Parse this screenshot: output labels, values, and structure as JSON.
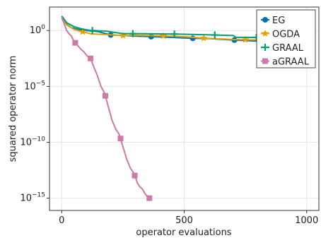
{
  "chart_data": {
    "type": "line",
    "title": "",
    "xlabel": "operator evaluations",
    "ylabel": "squared operator norm",
    "xlim": [
      -50,
      1050
    ],
    "y_scale": "log10",
    "ylim_log10": [
      -16.1,
      2.1
    ],
    "x_ticks": [
      0,
      500,
      1000
    ],
    "x_tick_labels": [
      "0",
      "500",
      "1000"
    ],
    "y_ticks_log10": [
      0,
      -5,
      -10,
      -15
    ],
    "y_tick_labels": [
      {
        "base": "10",
        "exp": "0"
      },
      {
        "base": "10",
        "exp": "−5"
      },
      {
        "base": "10",
        "exp": "−10"
      },
      {
        "base": "10",
        "exp": "−15"
      }
    ],
    "grid": true,
    "legend_position": "top-right",
    "series": [
      {
        "name": "EG",
        "color": "#0072b2",
        "marker": "circle",
        "points": [
          [
            0,
            1.2
          ],
          [
            20,
            0.55
          ],
          [
            40,
            0.25
          ],
          [
            70,
            0.08
          ],
          [
            100,
            0.0
          ],
          [
            150,
            -0.1
          ],
          [
            200,
            -0.4
          ],
          [
            300,
            -0.5
          ],
          [
            365,
            -0.55
          ],
          [
            450,
            -0.62
          ],
          [
            535,
            -0.7
          ],
          [
            600,
            -0.72
          ],
          [
            700,
            -0.85
          ],
          [
            800,
            -0.95
          ],
          [
            900,
            -1.0
          ],
          [
            1000,
            -1.08
          ]
        ],
        "marker_x": [
          200,
          365,
          535,
          705,
          870
        ]
      },
      {
        "name": "OGDA",
        "color": "#e69f00",
        "marker": "star",
        "points": [
          [
            0,
            1.1
          ],
          [
            20,
            0.5
          ],
          [
            50,
            0.1
          ],
          [
            80,
            -0.08
          ],
          [
            120,
            -0.3
          ],
          [
            200,
            -0.38
          ],
          [
            250,
            -0.45
          ],
          [
            300,
            -0.42
          ],
          [
            415,
            -0.48
          ],
          [
            500,
            -0.55
          ],
          [
            580,
            -0.68
          ],
          [
            700,
            -0.8
          ],
          [
            750,
            -0.82
          ],
          [
            800,
            -0.85
          ],
          [
            900,
            -0.92
          ],
          [
            1000,
            -1.0
          ]
        ],
        "marker_x": [
          85,
          250,
          415,
          580,
          750,
          915
        ]
      },
      {
        "name": "GRAAL",
        "color": "#009e73",
        "marker": "plus",
        "points": [
          [
            0,
            1.3
          ],
          [
            20,
            0.7
          ],
          [
            50,
            0.35
          ],
          [
            80,
            0.15
          ],
          [
            120,
            0.0
          ],
          [
            180,
            -0.05
          ],
          [
            250,
            -0.28
          ],
          [
            300,
            -0.28
          ],
          [
            400,
            -0.3
          ],
          [
            500,
            -0.33
          ],
          [
            625,
            -0.4
          ],
          [
            700,
            -0.45
          ],
          [
            710,
            -0.6
          ],
          [
            800,
            -0.62
          ],
          [
            900,
            -0.72
          ],
          [
            1000,
            -0.85
          ]
        ],
        "marker_x": [
          125,
          290,
          460,
          625,
          795,
          960
        ]
      },
      {
        "name": "aGRAAL",
        "color": "#cc79a7",
        "marker": "square",
        "points": [
          [
            0,
            1.2
          ],
          [
            10,
            0.6
          ],
          [
            20,
            0.0
          ],
          [
            30,
            -0.3
          ],
          [
            40,
            -0.5
          ],
          [
            50,
            -1.0
          ],
          [
            60,
            -1.2
          ],
          [
            75,
            -1.6
          ],
          [
            90,
            -1.9
          ],
          [
            105,
            -2.3
          ],
          [
            118,
            -2.5
          ],
          [
            130,
            -3.2
          ],
          [
            145,
            -4.0
          ],
          [
            160,
            -5.0
          ],
          [
            175,
            -5.6
          ],
          [
            190,
            -6.8
          ],
          [
            205,
            -8.0
          ],
          [
            220,
            -8.8
          ],
          [
            235,
            -9.3
          ],
          [
            250,
            -10.4
          ],
          [
            265,
            -11.5
          ],
          [
            280,
            -12.3
          ],
          [
            295,
            -12.8
          ],
          [
            310,
            -13.7
          ],
          [
            320,
            -14.0
          ],
          [
            330,
            -14.2
          ],
          [
            340,
            -14.6
          ],
          [
            355,
            -15.0
          ],
          [
            362,
            -15.0
          ]
        ],
        "marker_x": [
          55,
          118,
          178,
          240,
          298,
          358
        ]
      }
    ]
  }
}
